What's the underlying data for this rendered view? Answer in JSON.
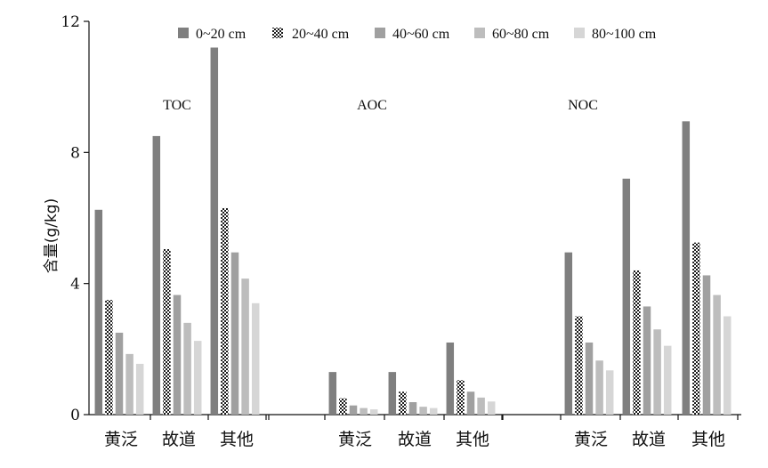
{
  "chart_data": {
    "type": "bar",
    "title": "",
    "xlabel": "",
    "ylabel": "含量(g/kg)",
    "ylim": [
      0,
      12
    ],
    "yticks": [
      0,
      4,
      8,
      12
    ],
    "grid": false,
    "legend_position": "top-right",
    "groups": [
      {
        "label": "TOC",
        "categories": [
          "黄泛",
          "故道",
          "其他"
        ]
      },
      {
        "label": "AOC",
        "categories": [
          "黄泛",
          "故道",
          "其他"
        ]
      },
      {
        "label": "NOC",
        "categories": [
          "黄泛",
          "故道",
          "其他"
        ]
      }
    ],
    "series": [
      {
        "name": "0~20 cm",
        "color": "#7f7f7f",
        "pattern": "solid",
        "values": [
          6.25,
          8.5,
          11.2,
          1.3,
          1.3,
          2.2,
          4.95,
          7.2,
          8.95
        ]
      },
      {
        "name": "20~40 cm",
        "color": "#1a1a1a",
        "pattern": "checker",
        "values": [
          3.5,
          5.05,
          6.3,
          0.5,
          0.7,
          1.05,
          3.0,
          4.4,
          5.25
        ]
      },
      {
        "name": "40~60 cm",
        "color": "#a0a0a0",
        "pattern": "solid",
        "values": [
          2.5,
          3.65,
          4.95,
          0.28,
          0.38,
          0.7,
          2.2,
          3.3,
          4.25
        ]
      },
      {
        "name": "60~80 cm",
        "color": "#bdbdbd",
        "pattern": "solid",
        "values": [
          1.85,
          2.8,
          4.15,
          0.2,
          0.24,
          0.52,
          1.65,
          2.6,
          3.65
        ]
      },
      {
        "name": "80~100 cm",
        "color": "#d6d6d6",
        "pattern": "solid",
        "values": [
          1.55,
          2.25,
          3.4,
          0.16,
          0.2,
          0.4,
          1.35,
          2.1,
          3.0
        ]
      }
    ]
  }
}
